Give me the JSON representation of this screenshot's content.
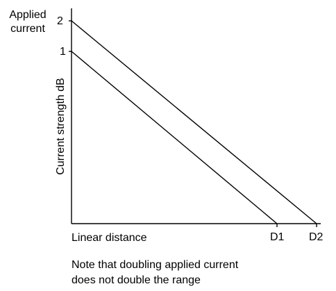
{
  "chart_data": {
    "type": "line",
    "applied_label": "Applied\ncurrent",
    "ylabel": "Current strength dB",
    "xlabel": "Linear distance",
    "note": "Note that doubling applied current\ndoes not double the range",
    "y_ticks": [
      "2",
      "1"
    ],
    "x_ticks": [
      "D1",
      "D2"
    ],
    "series": [
      {
        "start": "1",
        "end": "D1"
      },
      {
        "start": "2",
        "end": "D2"
      }
    ],
    "grid": false
  }
}
